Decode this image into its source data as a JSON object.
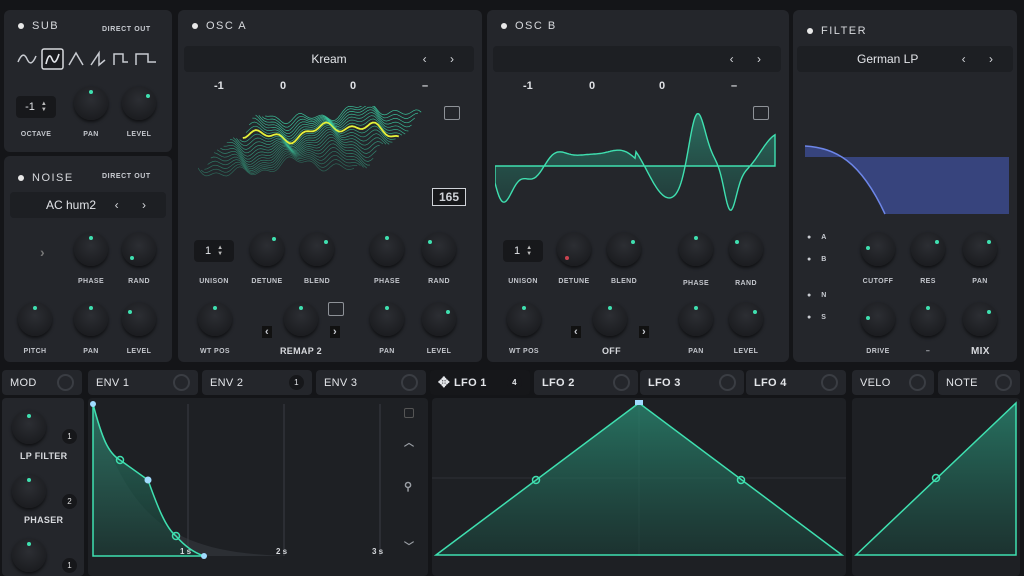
{
  "sub": {
    "title": "SUB",
    "direct_out": "DIRECT OUT",
    "octave_value": "-1",
    "labels": {
      "octave": "OCTAVE",
      "pan": "PAN",
      "level": "LEVEL"
    }
  },
  "noise": {
    "title": "NOISE",
    "direct_out": "DIRECT OUT",
    "preset": "AC hum2",
    "labels": {
      "phase": "PHASE",
      "rand": "RAND",
      "pitch": "PITCH",
      "pan": "PAN",
      "level": "LEVEL"
    }
  },
  "osc_a": {
    "title": "OSC A",
    "preset": "Kream",
    "params": [
      "-1",
      "0",
      "0",
      "–"
    ],
    "frame": "165",
    "unison_value": "1",
    "labels": {
      "unison": "UNISON",
      "detune": "DETUNE",
      "blend": "BLEND",
      "phase": "PHASE",
      "rand": "RAND",
      "wt_pos": "WT POS",
      "pan": "PAN",
      "level": "LEVEL"
    },
    "warp": "REMAP 2"
  },
  "osc_b": {
    "title": "OSC B",
    "params": [
      "-1",
      "0",
      "0",
      "–"
    ],
    "unison_value": "1",
    "labels": {
      "unison": "UNISON",
      "detune": "DETUNE",
      "blend": "BLEND",
      "phase": "PHASE",
      "rand": "RAND",
      "wt_pos": "WT POS",
      "pan": "PAN",
      "level": "LEVEL"
    },
    "warp": "OFF"
  },
  "filter": {
    "title": "FILTER",
    "preset": "German LP",
    "routing": [
      "A",
      "B",
      "N",
      "S"
    ],
    "labels": {
      "cutoff": "CUTOFF",
      "res": "RES",
      "pan": "PAN",
      "drive": "DRIVE",
      "dash": "–",
      "mix": "MIX"
    }
  },
  "tabs": {
    "mod": "MOD",
    "env1": "ENV 1",
    "env2": "ENV 2",
    "env2_count": "1",
    "env3": "ENV 3",
    "lfo1": "LFO 1",
    "lfo1_count": "4",
    "lfo2": "LFO 2",
    "lfo3": "LFO 3",
    "lfo4": "LFO 4",
    "velo": "VELO",
    "note": "NOTE"
  },
  "mod_targets": [
    {
      "label": "LP FILTER",
      "count": "1"
    },
    {
      "label": "PHASER",
      "count": "2"
    },
    {
      "label": "",
      "count": "1"
    }
  ],
  "env_times": [
    "1 s",
    "2 s",
    "3 s"
  ],
  "colors": {
    "accent": "#3fe0b0",
    "panel": "#24262b",
    "filter_curve": "#4a5ea8"
  }
}
